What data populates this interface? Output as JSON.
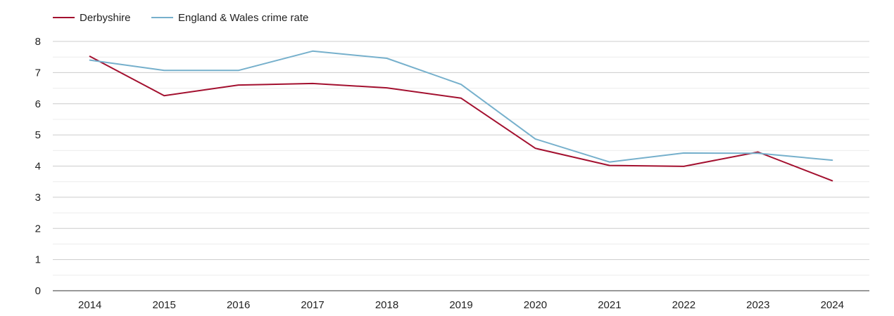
{
  "chart_data": {
    "type": "line",
    "title": "",
    "xlabel": "",
    "ylabel": "",
    "categories": [
      "2014",
      "2015",
      "2016",
      "2017",
      "2018",
      "2019",
      "2020",
      "2021",
      "2022",
      "2023",
      "2024"
    ],
    "ylim": [
      0,
      8
    ],
    "yticks": [
      "0",
      "1",
      "2",
      "3",
      "4",
      "5",
      "6",
      "7",
      "8"
    ],
    "grid": true,
    "legend_position": "top-left",
    "series": [
      {
        "name": "Derbyshire",
        "color": "#a3102f",
        "values": [
          7.52,
          6.26,
          6.6,
          6.65,
          6.51,
          6.18,
          4.57,
          4.02,
          3.99,
          4.45,
          3.53
        ]
      },
      {
        "name": "England & Wales crime rate",
        "color": "#76b0cc",
        "values": [
          7.4,
          7.07,
          7.07,
          7.69,
          7.46,
          6.62,
          4.87,
          4.13,
          4.42,
          4.41,
          4.19
        ]
      }
    ]
  }
}
